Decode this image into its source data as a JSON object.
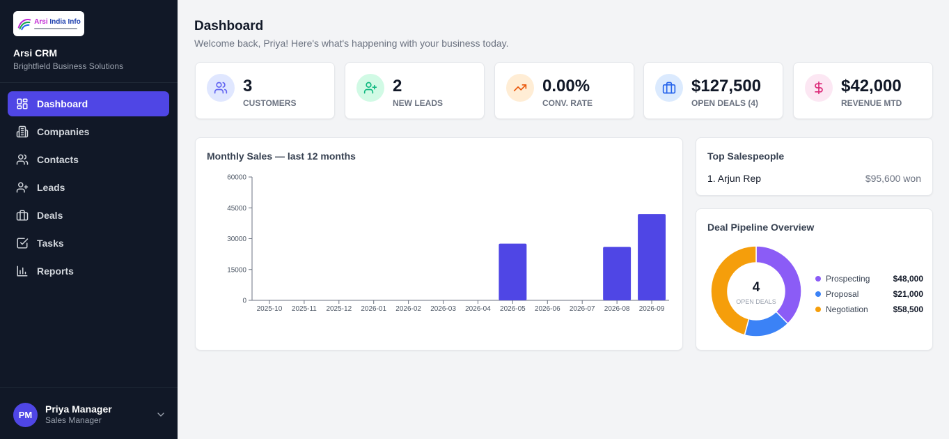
{
  "sidebar": {
    "logo": {
      "name_part1": "Arsi",
      "name_part2": " India Info"
    },
    "app_name": "Arsi CRM",
    "org_name": "Brightfield Business Solutions",
    "items": [
      {
        "label": "Dashboard",
        "icon": "dashboard-icon",
        "active": true
      },
      {
        "label": "Companies",
        "icon": "building-icon"
      },
      {
        "label": "Contacts",
        "icon": "users-icon"
      },
      {
        "label": "Leads",
        "icon": "user-plus-icon"
      },
      {
        "label": "Deals",
        "icon": "briefcase-icon"
      },
      {
        "label": "Tasks",
        "icon": "check-square-icon"
      },
      {
        "label": "Reports",
        "icon": "bar-chart-icon"
      }
    ],
    "user": {
      "initials": "PM",
      "name": "Priya Manager",
      "role": "Sales Manager"
    }
  },
  "header": {
    "title": "Dashboard",
    "subtitle": "Welcome back, Priya! Here's what's happening with your business today."
  },
  "kpis": [
    {
      "value": "3",
      "label": "Customers",
      "icon": "users-icon",
      "color": "#6366f1",
      "bg": "#e0e7ff"
    },
    {
      "value": "2",
      "label": "New Leads",
      "icon": "user-plus-icon",
      "color": "#10b981",
      "bg": "#d1fae5"
    },
    {
      "value": "0.00%",
      "label": "Conv. Rate",
      "icon": "trending-up-icon",
      "color": "#ea580c",
      "bg": "#ffedd5"
    },
    {
      "value": "$127,500",
      "label": "Open Deals (4)",
      "icon": "briefcase-icon",
      "color": "#2563eb",
      "bg": "#dbeafe"
    },
    {
      "value": "$42,000",
      "label": "Revenue MTD",
      "icon": "dollar-icon",
      "color": "#db2777",
      "bg": "#fce7f3"
    }
  ],
  "sales_chart": {
    "title": "Monthly Sales — last 12 months"
  },
  "chart_data": {
    "type": "bar",
    "title": "Monthly Sales — last 12 months",
    "categories": [
      "2025-10",
      "2025-11",
      "2025-12",
      "2026-01",
      "2026-02",
      "2026-03",
      "2026-04",
      "2026-05",
      "2026-06",
      "2026-07",
      "2026-08",
      "2026-09"
    ],
    "values": [
      0,
      0,
      0,
      0,
      0,
      0,
      0,
      27600,
      0,
      0,
      26000,
      42000
    ],
    "ylim": [
      0,
      60000
    ],
    "yticks": [
      0,
      15000,
      30000,
      45000,
      60000
    ],
    "color": "#4f46e5",
    "grid": false
  },
  "top_salespeople": {
    "title": "Top Salespeople",
    "rows": [
      {
        "name": "1. Arjun Rep",
        "amount": "$95,600 won"
      }
    ]
  },
  "pipeline": {
    "title": "Deal Pipeline Overview",
    "center_value": "4",
    "center_label": "OPEN DEALS",
    "segments": [
      {
        "name": "Prospecting",
        "display": "$48,000",
        "value": 48000,
        "color": "#8b5cf6"
      },
      {
        "name": "Proposal",
        "display": "$21,000",
        "value": 21000,
        "color": "#3b82f6"
      },
      {
        "name": "Negotiation",
        "display": "$58,500",
        "value": 58500,
        "color": "#f59e0b"
      }
    ]
  }
}
